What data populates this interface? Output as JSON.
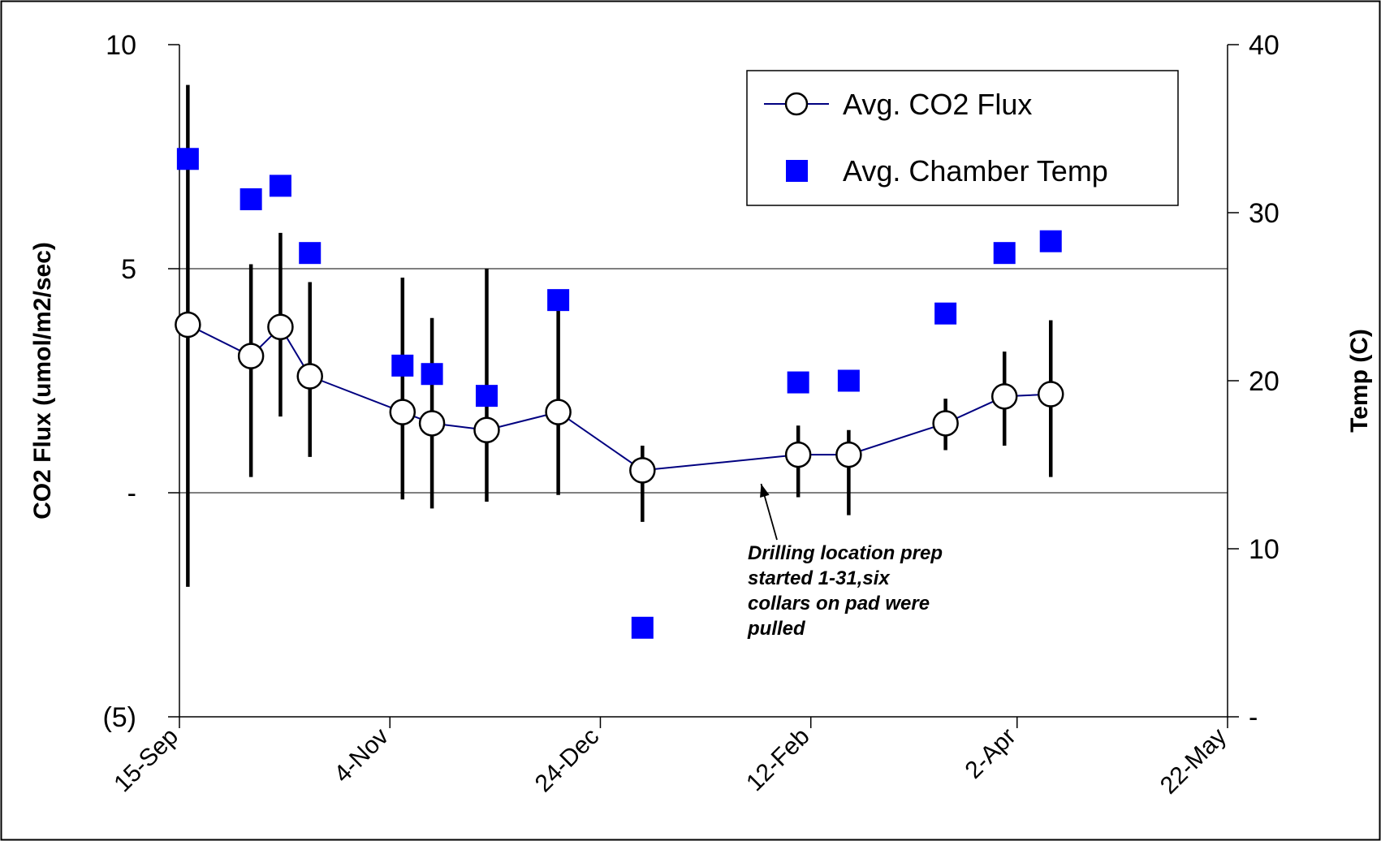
{
  "chart_data": {
    "type": "line",
    "x_axis": {
      "ticks": [
        {
          "date": "2000-09-15",
          "label": "15-Sep"
        },
        {
          "date": "2000-11-04",
          "label": "4-Nov"
        },
        {
          "date": "2000-12-24",
          "label": "24-Dec"
        },
        {
          "date": "2001-02-12",
          "label": "12-Feb"
        },
        {
          "date": "2001-04-02",
          "label": "2-Apr"
        },
        {
          "date": "2001-05-22",
          "label": "22-May"
        }
      ],
      "range": [
        "2000-09-15",
        "2001-05-22"
      ]
    },
    "y_left": {
      "label": "CO2 Flux (umol/m2/sec)",
      "range": [
        -5,
        10
      ],
      "ticks": [
        {
          "value": 10,
          "label": "10"
        },
        {
          "value": 5,
          "label": "5"
        },
        {
          "value": 0,
          "label": "-"
        },
        {
          "value": -5,
          "label": "(5)"
        }
      ],
      "gridlines": [
        0,
        5
      ]
    },
    "y_right": {
      "label": "Temp (C)",
      "range": [
        0,
        40
      ],
      "ticks": [
        {
          "value": 40,
          "label": "40"
        },
        {
          "value": 30,
          "label": "30"
        },
        {
          "value": 20,
          "label": "20"
        },
        {
          "value": 10,
          "label": "10"
        },
        {
          "value": 0,
          "label": "-"
        }
      ]
    },
    "series": [
      {
        "name": "Avg. CO2 Flux",
        "axis": "left",
        "color": "#000080",
        "marker": "open-circle",
        "points": [
          {
            "x": "2000-09-17",
            "y": 3.75,
            "err_low": -2.1,
            "err_high": 9.1
          },
          {
            "x": "2000-10-02",
            "y": 3.05,
            "err_low": 0.35,
            "err_high": 5.1
          },
          {
            "x": "2000-10-09",
            "y": 3.7,
            "err_low": 1.7,
            "err_high": 5.8
          },
          {
            "x": "2000-10-16",
            "y": 2.6,
            "err_low": 0.8,
            "err_high": 4.7
          },
          {
            "x": "2000-11-07",
            "y": 1.8,
            "err_low": -0.15,
            "err_high": 4.8
          },
          {
            "x": "2000-11-14",
            "y": 1.55,
            "err_low": -0.35,
            "err_high": 3.9
          },
          {
            "x": "2000-11-27",
            "y": 1.4,
            "err_low": -0.2,
            "err_high": 5.0
          },
          {
            "x": "2000-12-14",
            "y": 1.8,
            "err_low": -0.05,
            "err_high": 4.1
          },
          {
            "x": "2001-01-03",
            "y": 0.5,
            "err_low": -0.65,
            "err_high": 1.05
          },
          {
            "x": "2001-02-09",
            "y": 0.85,
            "err_low": -0.1,
            "err_high": 1.5
          },
          {
            "x": "2001-02-21",
            "y": 0.85,
            "err_low": -0.5,
            "err_high": 1.4
          },
          {
            "x": "2001-03-16",
            "y": 1.55,
            "err_low": 0.95,
            "err_high": 2.1
          },
          {
            "x": "2001-03-30",
            "y": 2.15,
            "err_low": 1.05,
            "err_high": 3.15
          },
          {
            "x": "2001-04-10",
            "y": 2.2,
            "err_low": 0.35,
            "err_high": 3.85
          }
        ]
      },
      {
        "name": "Avg. Chamber Temp",
        "axis": "right",
        "color": "#0000FF",
        "marker": "filled-square",
        "points": [
          {
            "x": "2000-09-17",
            "y": 33.2
          },
          {
            "x": "2000-10-02",
            "y": 30.8
          },
          {
            "x": "2000-10-09",
            "y": 31.6
          },
          {
            "x": "2000-10-16",
            "y": 27.6
          },
          {
            "x": "2000-11-07",
            "y": 20.9
          },
          {
            "x": "2000-11-14",
            "y": 20.4
          },
          {
            "x": "2000-11-27",
            "y": 19.1
          },
          {
            "x": "2000-12-14",
            "y": 24.8
          },
          {
            "x": "2001-01-03",
            "y": 5.3
          },
          {
            "x": "2001-02-09",
            "y": 19.9
          },
          {
            "x": "2001-02-21",
            "y": 20.0
          },
          {
            "x": "2001-03-16",
            "y": 24.0
          },
          {
            "x": "2001-03-30",
            "y": 27.6
          },
          {
            "x": "2001-04-10",
            "y": 28.3
          }
        ]
      }
    ],
    "legend": {
      "placement": "top-right",
      "entries": [
        "Avg. CO2 Flux",
        "Avg. Chamber Temp"
      ]
    },
    "annotation": {
      "lines": [
        "Drilling location prep",
        "started 1-31,six",
        "collars on pad were",
        "pulled"
      ],
      "arrow_to": {
        "x": "2001-01-31",
        "y": 0.2
      }
    },
    "grid": "horizontal major gridlines on left axis"
  }
}
